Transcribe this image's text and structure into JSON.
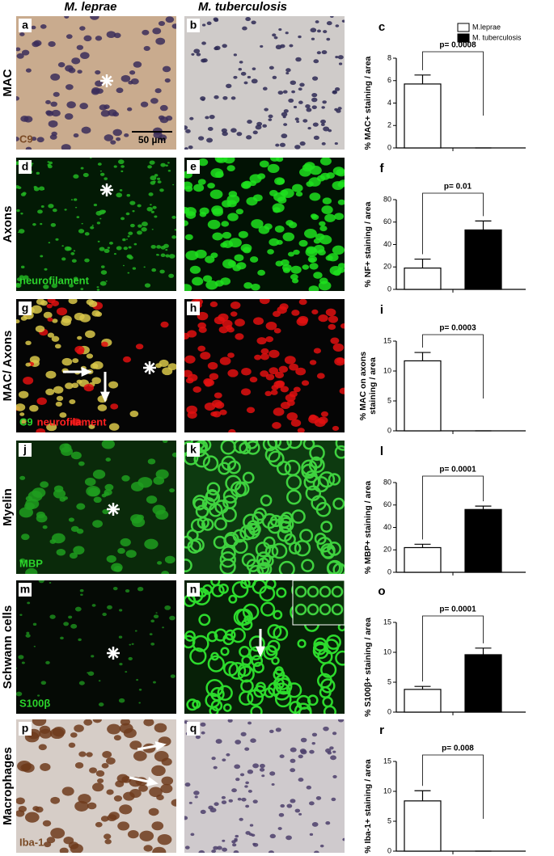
{
  "figure": {
    "columns": [
      "M. leprae",
      "M. tuberculosis"
    ],
    "rows": [
      {
        "label": "MAC",
        "panels": [
          {
            "letter": "a",
            "stain": [
              "C9"
            ],
            "scale": "50 µm"
          },
          {
            "letter": "b"
          }
        ]
      },
      {
        "label": "Axons",
        "panels": [
          {
            "letter": "d",
            "stain": [
              "neurofilament"
            ]
          },
          {
            "letter": "e"
          }
        ]
      },
      {
        "label": "MAC/ Axons",
        "panels": [
          {
            "letter": "g",
            "stain": [
              "C9",
              "neurofilament"
            ]
          },
          {
            "letter": "h"
          }
        ]
      },
      {
        "label": "Myelin",
        "panels": [
          {
            "letter": "j",
            "stain": [
              "MBP"
            ]
          },
          {
            "letter": "k"
          }
        ]
      },
      {
        "label": "Schwann cells",
        "panels": [
          {
            "letter": "m",
            "stain": [
              "S100β"
            ]
          },
          {
            "letter": "n"
          }
        ]
      },
      {
        "label": "Macrophages",
        "panels": [
          {
            "letter": "p",
            "stain": [
              "Iba-1"
            ]
          },
          {
            "letter": "q"
          }
        ]
      }
    ]
  },
  "chart_data": [
    {
      "type": "bar",
      "letter": "c",
      "ylabel": [
        "% MAC+ staining / area"
      ],
      "categories": [
        null
      ],
      "series": [
        {
          "name": "M.leprae",
          "color": "#ffffff",
          "values": [
            5.7
          ],
          "errors": [
            0.8
          ]
        },
        {
          "name": "M. tuberculosis",
          "color": "#000000",
          "values": [
            0
          ],
          "errors": [
            0
          ]
        }
      ],
      "ylim": [
        0,
        8
      ],
      "yticks": [
        0,
        2,
        4,
        6,
        8
      ],
      "annotation": "p= 0.0008"
    },
    {
      "type": "bar",
      "letter": "f",
      "ylabel": [
        "% NF+ staining / area"
      ],
      "categories": [
        null
      ],
      "series": [
        {
          "color": "#ffffff",
          "values": [
            19
          ],
          "errors": [
            8
          ]
        },
        {
          "color": "#000000",
          "values": [
            53
          ],
          "errors": [
            8
          ]
        }
      ],
      "ylim": [
        0,
        80
      ],
      "yticks": [
        0,
        20,
        40,
        60,
        80
      ],
      "annotation": "p= 0.01"
    },
    {
      "type": "bar",
      "letter": "i",
      "ylabel": [
        "% MAC on axons",
        "staining / area"
      ],
      "categories": [
        null
      ],
      "series": [
        {
          "color": "#ffffff",
          "values": [
            11.7
          ],
          "errors": [
            1.4
          ]
        },
        {
          "color": "#000000",
          "values": [
            0
          ],
          "errors": [
            0
          ]
        }
      ],
      "ylim": [
        0,
        15
      ],
      "yticks": [
        0,
        5,
        10,
        15
      ],
      "annotation": "p= 0.0003"
    },
    {
      "type": "bar",
      "letter": "l",
      "ylabel": [
        "% MBP+ staining / area"
      ],
      "categories": [
        null
      ],
      "series": [
        {
          "color": "#ffffff",
          "values": [
            22
          ],
          "errors": [
            3
          ]
        },
        {
          "color": "#000000",
          "values": [
            56
          ],
          "errors": [
            3
          ]
        }
      ],
      "ylim": [
        0,
        80
      ],
      "yticks": [
        0,
        20,
        40,
        60,
        80
      ],
      "annotation": "p= 0.0001"
    },
    {
      "type": "bar",
      "letter": "o",
      "ylabel": [
        "% S100β+ staining / area"
      ],
      "categories": [
        null
      ],
      "series": [
        {
          "color": "#ffffff",
          "values": [
            3.8
          ],
          "errors": [
            0.5
          ]
        },
        {
          "color": "#000000",
          "values": [
            9.6
          ],
          "errors": [
            1.1
          ]
        }
      ],
      "ylim": [
        0,
        15
      ],
      "yticks": [
        0,
        5,
        10,
        15
      ],
      "annotation": "p= 0.0001"
    },
    {
      "type": "bar",
      "letter": "r",
      "ylabel": [
        "% Iba-1+ staining / area"
      ],
      "categories": [
        null
      ],
      "series": [
        {
          "color": "#ffffff",
          "values": [
            8.4
          ],
          "errors": [
            1.7
          ]
        },
        {
          "color": "#000000",
          "values": [
            0
          ],
          "errors": [
            0
          ]
        }
      ],
      "ylim": [
        0,
        15
      ],
      "yticks": [
        0,
        5,
        10,
        15
      ],
      "annotation": "p= 0.008"
    }
  ]
}
